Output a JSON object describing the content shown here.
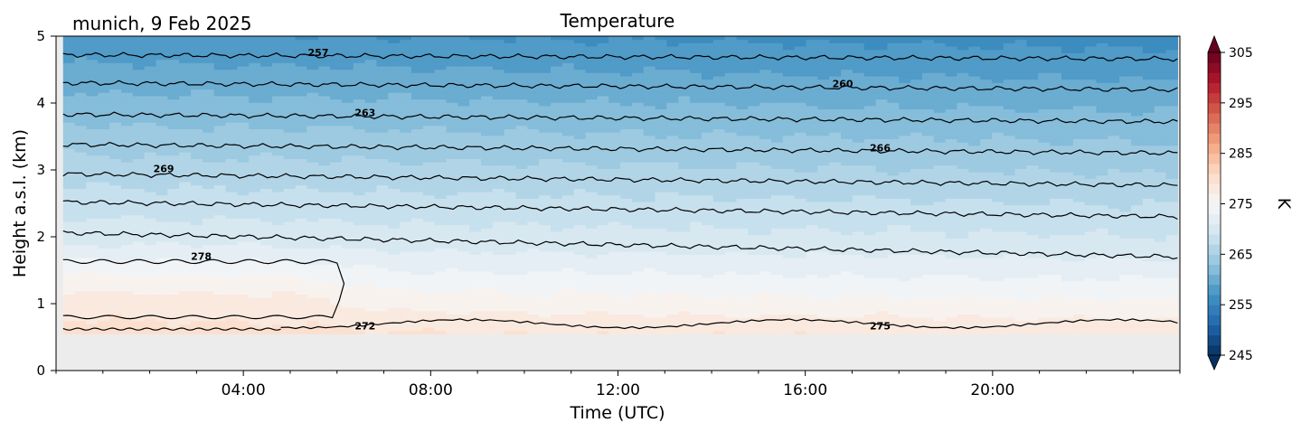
{
  "location_date": "munich, 9 Feb 2025",
  "chart_data": {
    "type": "heatmap",
    "title": "Temperature",
    "xlabel": "Time (UTC)",
    "ylabel": "Height a.s.l. (km)",
    "xlim_hours": [
      0,
      24
    ],
    "ylim_km": [
      0,
      5
    ],
    "x_ticks": [
      {
        "hour": 4,
        "label": "04:00"
      },
      {
        "hour": 8,
        "label": "08:00"
      },
      {
        "hour": 12,
        "label": "12:00"
      },
      {
        "hour": 16,
        "label": "16:00"
      },
      {
        "hour": 20,
        "label": "20:00"
      }
    ],
    "y_ticks": [
      {
        "value": 0,
        "label": "0"
      },
      {
        "value": 1,
        "label": "1"
      },
      {
        "value": 2,
        "label": "2"
      },
      {
        "value": 3,
        "label": "3"
      },
      {
        "value": 4,
        "label": "4"
      },
      {
        "value": 5,
        "label": "5"
      }
    ],
    "colorbar": {
      "label": "K",
      "range": [
        245,
        305
      ],
      "colormap": "RdBu_r",
      "extend": "both",
      "ticks": [
        {
          "value": 245,
          "label": "245"
        },
        {
          "value": 255,
          "label": "255"
        },
        {
          "value": 265,
          "label": "265"
        },
        {
          "value": 275,
          "label": "275"
        },
        {
          "value": 285,
          "label": "285"
        },
        {
          "value": 295,
          "label": "295"
        },
        {
          "value": 305,
          "label": "305"
        }
      ]
    },
    "data_start_hour": 0.15,
    "data_end_hour": 23.95,
    "data_bottom_km": 0.55,
    "surface_temperature_K": 276.5,
    "lapse_rate_K_per_km": 4.3,
    "inversion": {
      "hour_start": 0.15,
      "hour_end": 6.0,
      "height_km": 1.2,
      "peak_K": 279.5
    },
    "contour_labels": [
      {
        "text": "257",
        "hour": 5.6,
        "km": 4.76
      },
      {
        "text": "260",
        "hour": 16.8,
        "km": 4.29
      },
      {
        "text": "263",
        "hour": 6.6,
        "km": 3.86
      },
      {
        "text": "266",
        "hour": 17.6,
        "km": 3.33
      },
      {
        "text": "269",
        "hour": 2.3,
        "km": 3.02
      },
      {
        "text": "278",
        "hour": 3.1,
        "km": 1.71
      },
      {
        "text": "272",
        "hour": 6.6,
        "km": 0.67
      },
      {
        "text": "275",
        "hour": 17.6,
        "km": 0.67
      }
    ]
  }
}
